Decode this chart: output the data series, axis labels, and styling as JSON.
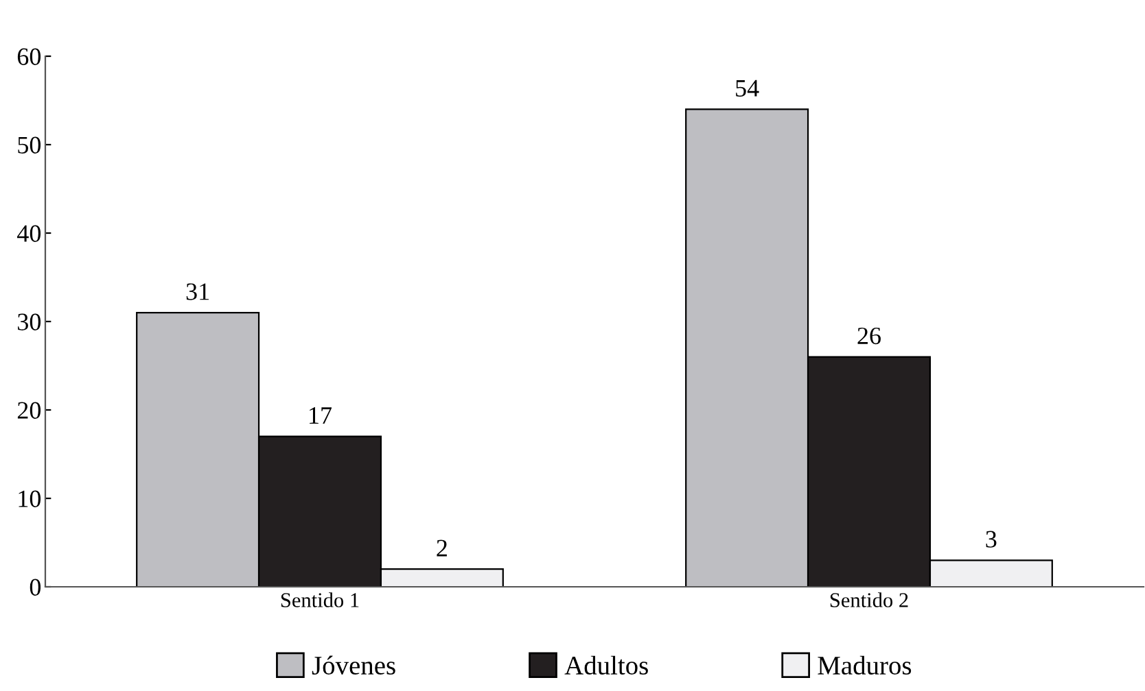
{
  "chart_data": {
    "type": "bar",
    "categories": [
      "Sentido 1",
      "Sentido 2"
    ],
    "series": [
      {
        "name": "Jóvenes",
        "color": "#bebec2",
        "values": [
          31,
          54
        ]
      },
      {
        "name": "Adultos",
        "color": "#231f20",
        "values": [
          17,
          26
        ]
      },
      {
        "name": "Maduros",
        "color": "#f0f0f2",
        "values": [
          2,
          3
        ]
      }
    ],
    "ylim": [
      0,
      60
    ],
    "yticks": [
      0,
      10,
      20,
      30,
      40,
      50,
      60
    ],
    "data_labels": true,
    "grid": false,
    "legend": "bottom"
  }
}
